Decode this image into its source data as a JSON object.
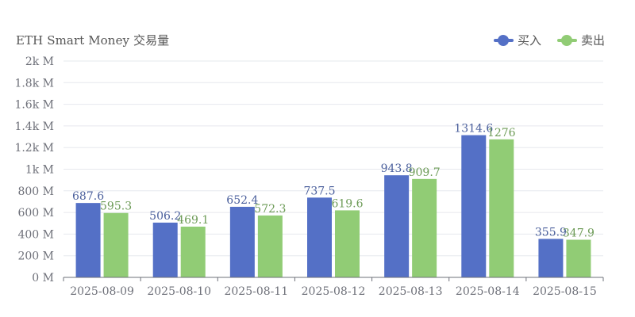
{
  "chart_data": {
    "type": "bar",
    "title": "ETH Smart Money 交易量",
    "categories": [
      "2025-08-09",
      "2025-08-10",
      "2025-08-11",
      "2025-08-12",
      "2025-08-13",
      "2025-08-14",
      "2025-08-15"
    ],
    "series": [
      {
        "name": "买入",
        "color": "#5470c6",
        "label_color": "#4a5f9c",
        "values": [
          687.6,
          506.2,
          652.4,
          737.5,
          943.8,
          1314.6,
          355.9
        ],
        "labels": [
          "687.6",
          "506.2",
          "652.4",
          "737.5",
          "943.8",
          "1314.6",
          "355.9"
        ]
      },
      {
        "name": "卖出",
        "color": "#91cc75",
        "label_color": "#6d9b57",
        "values": [
          595.3,
          469.1,
          572.3,
          619.6,
          909.7,
          1276,
          347.9
        ],
        "labels": [
          "595.3",
          "469.1",
          "572.3",
          "619.6",
          "909.7",
          "1276",
          "347.9"
        ]
      }
    ],
    "ylim": [
      0,
      2000
    ],
    "yticks": [
      {
        "value": 0,
        "label": "0 M"
      },
      {
        "value": 200,
        "label": "200 M"
      },
      {
        "value": 400,
        "label": "400 M"
      },
      {
        "value": 600,
        "label": "600 M"
      },
      {
        "value": 800,
        "label": "800 M"
      },
      {
        "value": 1000,
        "label": "1k M"
      },
      {
        "value": 1200,
        "label": "1.2k M"
      },
      {
        "value": 1400,
        "label": "1.4k M"
      },
      {
        "value": 1600,
        "label": "1.6k M"
      },
      {
        "value": 1800,
        "label": "1.8k M"
      },
      {
        "value": 2000,
        "label": "2k M"
      }
    ],
    "grid": true,
    "legend_position": "top-right",
    "xlabel": "",
    "ylabel": ""
  }
}
